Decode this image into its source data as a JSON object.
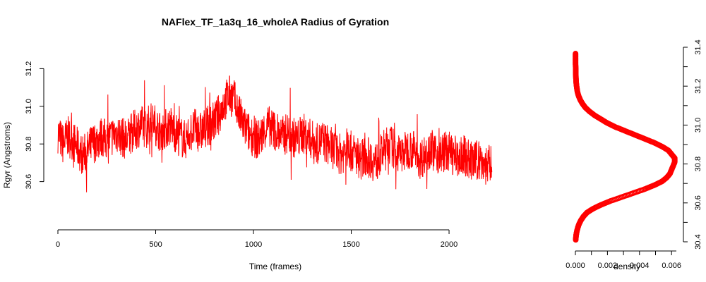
{
  "chart_data": [
    {
      "type": "line",
      "title": "NAFlex_TF_1a3q_16_wholeA Radius of Gyration",
      "xlabel": "Time (frames)",
      "ylabel": "Rgyr (Angstroms)",
      "xlim": [
        0,
        2220
      ],
      "ylim": [
        30.46,
        31.34
      ],
      "xticks": [
        0,
        500,
        1000,
        1500,
        2000
      ],
      "yticks": [
        30.6,
        30.8,
        31.0,
        31.2
      ],
      "color": "#ff0000",
      "series": [
        {
          "x": [
            0,
            25,
            50,
            75,
            100,
            125,
            150,
            175,
            200,
            225,
            250,
            275,
            300,
            325,
            350,
            375,
            400,
            425,
            450,
            475,
            500,
            525,
            550,
            575,
            600,
            625,
            650,
            675,
            700,
            725,
            750,
            775,
            800,
            825,
            850,
            875,
            900,
            925,
            950,
            975,
            1000,
            1025,
            1050,
            1075,
            1100,
            1125,
            1150,
            1175,
            1200,
            1225,
            1250,
            1275,
            1300,
            1325,
            1350,
            1375,
            1400,
            1425,
            1450,
            1475,
            1500,
            1525,
            1550,
            1575,
            1600,
            1625,
            1650,
            1675,
            1700,
            1725,
            1750,
            1775,
            1800,
            1825,
            1850,
            1875,
            1900,
            1925,
            1950,
            1975,
            2000,
            2025,
            2050,
            2075,
            2100,
            2125,
            2150,
            2175,
            2200,
            2220
          ],
          "y": [
            30.86,
            30.8,
            30.84,
            30.82,
            30.78,
            30.74,
            30.76,
            30.8,
            30.82,
            30.84,
            30.82,
            30.84,
            30.86,
            30.84,
            30.82,
            30.86,
            30.88,
            30.9,
            30.88,
            30.92,
            30.9,
            30.86,
            30.88,
            30.9,
            30.86,
            30.84,
            30.82,
            30.86,
            30.88,
            30.86,
            30.88,
            30.9,
            30.92,
            30.96,
            31.02,
            31.06,
            31.04,
            30.96,
            30.9,
            30.86,
            30.84,
            30.82,
            30.86,
            30.9,
            30.88,
            30.86,
            30.84,
            30.86,
            30.84,
            30.82,
            30.86,
            30.84,
            30.82,
            30.8,
            30.82,
            30.8,
            30.78,
            30.76,
            30.74,
            30.78,
            30.76,
            30.74,
            30.72,
            30.74,
            30.72,
            30.7,
            30.74,
            30.78,
            30.8,
            30.76,
            30.74,
            30.76,
            30.78,
            30.76,
            30.72,
            30.74,
            30.78,
            30.76,
            30.74,
            30.76,
            30.76,
            30.74,
            30.72,
            30.74,
            30.72,
            30.7,
            30.72,
            30.7,
            30.68,
            30.7
          ]
        }
      ]
    },
    {
      "type": "line",
      "title": "",
      "xlabel": "density",
      "ylabel": "",
      "orientation": "vertical",
      "xlim": [
        0,
        0.0063
      ],
      "ylim": [
        30.4,
        31.4
      ],
      "xticks": [
        "0.000",
        "0.002",
        "0.004",
        "0.006"
      ],
      "xtick_values": [
        0,
        0.002,
        0.004,
        0.006
      ],
      "yticks": [
        "30.4",
        "30.6",
        "30.8",
        "31.0",
        "31.2",
        "31.4"
      ],
      "ytick_values": [
        30.4,
        30.6,
        30.8,
        31.0,
        31.2,
        31.4
      ],
      "yaxis_side": "right",
      "color": "#ff0000",
      "series": [
        {
          "y": [
            30.41,
            30.43,
            30.45,
            30.47,
            30.49,
            30.51,
            30.53,
            30.55,
            30.57,
            30.59,
            30.61,
            30.63,
            30.65,
            30.67,
            30.69,
            30.71,
            30.73,
            30.75,
            30.77,
            30.79,
            30.81,
            30.83,
            30.85,
            30.87,
            30.89,
            30.91,
            30.93,
            30.95,
            30.97,
            30.99,
            31.01,
            31.03,
            31.05,
            31.07,
            31.09,
            31.11,
            31.13,
            31.15,
            31.17,
            31.19,
            31.21,
            31.23,
            31.25,
            31.27,
            31.29,
            31.31,
            31.33,
            31.35,
            31.37
          ],
          "x": [
            2e-05,
            4e-05,
            8e-05,
            0.00014,
            0.00022,
            0.00034,
            0.0005,
            0.00072,
            0.0011,
            0.0016,
            0.0022,
            0.0029,
            0.0036,
            0.0043,
            0.0049,
            0.0054,
            0.0057,
            0.0059,
            0.006,
            0.0061,
            0.0062,
            0.0062,
            0.006,
            0.0058,
            0.0054,
            0.0049,
            0.0043,
            0.0037,
            0.0031,
            0.0025,
            0.002,
            0.0016,
            0.0012,
            0.00088,
            0.00062,
            0.00044,
            0.0003,
            0.0002,
            0.00013,
            9e-05,
            6e-05,
            4e-05,
            3e-05,
            2e-05,
            2e-05,
            1e-05,
            1e-05,
            1e-05,
            1e-05
          ]
        }
      ]
    }
  ]
}
